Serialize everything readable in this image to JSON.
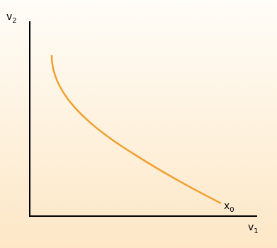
{
  "y_axis": {
    "label": "v",
    "subscript": "2"
  },
  "x_axis": {
    "label": "v",
    "subscript": "1"
  },
  "curve": {
    "label": "x",
    "subscript": "0"
  }
}
